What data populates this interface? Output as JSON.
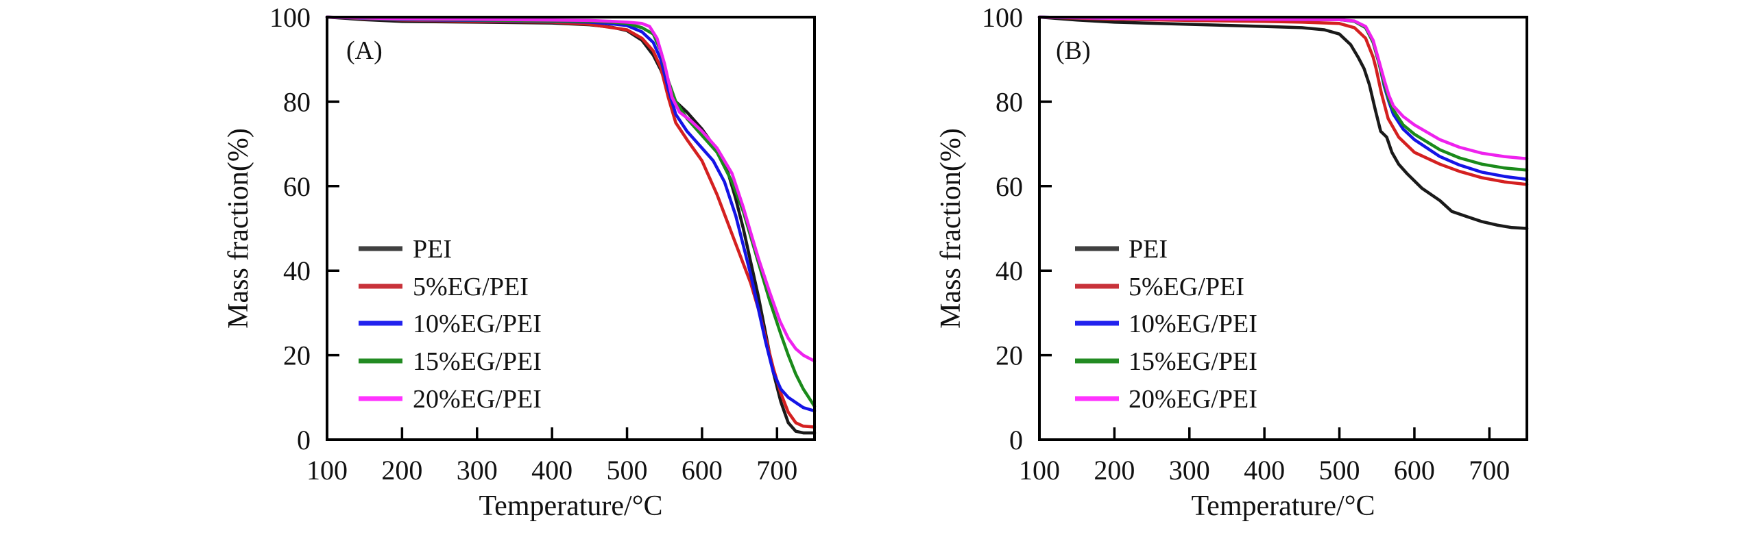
{
  "figure": {
    "panels": [
      "(A)",
      "(B)"
    ]
  },
  "chart_data": [
    {
      "type": "line",
      "panel_label": "(A)",
      "title": "",
      "xlabel": "Temperature/°C",
      "ylabel": "Mass fraction(%)",
      "xlim": [
        100,
        750
      ],
      "ylim": [
        0,
        100
      ],
      "xticks": [
        100,
        200,
        300,
        400,
        500,
        600,
        700
      ],
      "yticks": [
        0,
        20,
        40,
        60,
        80,
        100
      ],
      "grid": false,
      "legend_position": "lower-left",
      "series": [
        {
          "name": "PEI",
          "color": "#1a1a1a",
          "legend_color": "#404040",
          "points": [
            [
              100,
              100
            ],
            [
              150,
              99.4
            ],
            [
              200,
              99
            ],
            [
              300,
              98.8
            ],
            [
              400,
              98.6
            ],
            [
              450,
              98.2
            ],
            [
              480,
              97.6
            ],
            [
              500,
              96.8
            ],
            [
              520,
              94.5
            ],
            [
              535,
              91
            ],
            [
              545,
              87.5
            ],
            [
              555,
              83
            ],
            [
              565,
              80
            ],
            [
              580,
              77.5
            ],
            [
              600,
              73.5
            ],
            [
              620,
              68.5
            ],
            [
              635,
              63
            ],
            [
              645,
              57
            ],
            [
              655,
              50
            ],
            [
              665,
              42
            ],
            [
              675,
              34
            ],
            [
              685,
              25
            ],
            [
              695,
              16
            ],
            [
              705,
              9
            ],
            [
              715,
              4
            ],
            [
              725,
              2
            ],
            [
              735,
              1.6
            ],
            [
              750,
              1.6
            ]
          ]
        },
        {
          "name": "5%EG/PEI",
          "color": "#d42020",
          "legend_color": "#c8323a",
          "points": [
            [
              100,
              100
            ],
            [
              200,
              99.3
            ],
            [
              300,
              99
            ],
            [
              400,
              98.8
            ],
            [
              450,
              98.3
            ],
            [
              480,
              97.5
            ],
            [
              500,
              97
            ],
            [
              520,
              95
            ],
            [
              535,
              92
            ],
            [
              545,
              88
            ],
            [
              555,
              81
            ],
            [
              565,
              75
            ],
            [
              580,
              71
            ],
            [
              600,
              66
            ],
            [
              620,
              58
            ],
            [
              635,
              51
            ],
            [
              650,
              44
            ],
            [
              665,
              37
            ],
            [
              675,
              31
            ],
            [
              685,
              24
            ],
            [
              695,
              17
            ],
            [
              705,
              11
            ],
            [
              715,
              6.5
            ],
            [
              725,
              4
            ],
            [
              735,
              3.2
            ],
            [
              750,
              3
            ]
          ]
        },
        {
          "name": "10%EG/PEI",
          "color": "#1414e6",
          "legend_color": "#2222ee",
          "points": [
            [
              100,
              100
            ],
            [
              200,
              99.4
            ],
            [
              300,
              99.2
            ],
            [
              400,
              99
            ],
            [
              450,
              98.8
            ],
            [
              480,
              98.4
            ],
            [
              500,
              98
            ],
            [
              520,
              96.5
            ],
            [
              535,
              94
            ],
            [
              545,
              90
            ],
            [
              555,
              83
            ],
            [
              565,
              77
            ],
            [
              580,
              73
            ],
            [
              600,
              69
            ],
            [
              615,
              66
            ],
            [
              630,
              61
            ],
            [
              645,
              53
            ],
            [
              655,
              46
            ],
            [
              665,
              39
            ],
            [
              675,
              31
            ],
            [
              685,
              23
            ],
            [
              695,
              16
            ],
            [
              705,
              12
            ],
            [
              715,
              10
            ],
            [
              725,
              8.8
            ],
            [
              735,
              7.6
            ],
            [
              750,
              6.8
            ]
          ]
        },
        {
          "name": "15%EG/PEI",
          "color": "#1a8a1a",
          "legend_color": "#228b22",
          "points": [
            [
              100,
              100
            ],
            [
              200,
              99.5
            ],
            [
              300,
              99.3
            ],
            [
              400,
              99.1
            ],
            [
              450,
              99
            ],
            [
              480,
              98.8
            ],
            [
              500,
              98.5
            ],
            [
              520,
              97.5
            ],
            [
              535,
              96
            ],
            [
              545,
              92
            ],
            [
              555,
              85
            ],
            [
              565,
              80
            ],
            [
              580,
              76
            ],
            [
              600,
              72
            ],
            [
              620,
              68
            ],
            [
              640,
              61
            ],
            [
              655,
              54
            ],
            [
              665,
              48
            ],
            [
              675,
              42
            ],
            [
              690,
              33
            ],
            [
              705,
              25
            ],
            [
              715,
              20
            ],
            [
              725,
              15.5
            ],
            [
              735,
              12
            ],
            [
              750,
              7.9
            ]
          ]
        },
        {
          "name": "20%EG/PEI",
          "color": "#ee22ee",
          "legend_color": "#ff33ff",
          "points": [
            [
              100,
              100
            ],
            [
              200,
              99.6
            ],
            [
              300,
              99.5
            ],
            [
              400,
              99.3
            ],
            [
              450,
              99.2
            ],
            [
              480,
              99
            ],
            [
              500,
              98.8
            ],
            [
              520,
              98.5
            ],
            [
              530,
              97.8
            ],
            [
              540,
              95
            ],
            [
              550,
              89
            ],
            [
              560,
              81
            ],
            [
              570,
              77.5
            ],
            [
              585,
              75.5
            ],
            [
              600,
              73
            ],
            [
              620,
              69
            ],
            [
              640,
              63
            ],
            [
              655,
              55
            ],
            [
              665,
              49
            ],
            [
              675,
              43
            ],
            [
              690,
              35
            ],
            [
              704,
              28
            ],
            [
              715,
              24
            ],
            [
              725,
              21.5
            ],
            [
              735,
              20
            ],
            [
              750,
              18.6
            ]
          ]
        }
      ]
    },
    {
      "type": "line",
      "panel_label": "(B)",
      "title": "",
      "xlabel": "Temperature/°C",
      "ylabel": "Mass fraction(%)",
      "xlim": [
        100,
        750
      ],
      "ylim": [
        0,
        100
      ],
      "xticks": [
        100,
        200,
        300,
        400,
        500,
        600,
        700
      ],
      "yticks": [
        0,
        20,
        40,
        60,
        80,
        100
      ],
      "grid": false,
      "legend_position": "lower-left",
      "series": [
        {
          "name": "PEI",
          "color": "#1a1a1a",
          "legend_color": "#404040",
          "points": [
            [
              100,
              100
            ],
            [
              150,
              99.3
            ],
            [
              200,
              98.8
            ],
            [
              300,
              98.3
            ],
            [
              400,
              97.8
            ],
            [
              450,
              97.5
            ],
            [
              480,
              97
            ],
            [
              500,
              96
            ],
            [
              515,
              93.5
            ],
            [
              525,
              90.5
            ],
            [
              533,
              87.8
            ],
            [
              540,
              84
            ],
            [
              548,
              78
            ],
            [
              555,
              73
            ],
            [
              563,
              71.6
            ],
            [
              570,
              68
            ],
            [
              579,
              65.2
            ],
            [
              590,
              63
            ],
            [
              610,
              59.5
            ],
            [
              634,
              56.6
            ],
            [
              650,
              54
            ],
            [
              670,
              52.8
            ],
            [
              690,
              51.6
            ],
            [
              710,
              50.8
            ],
            [
              730,
              50.2
            ],
            [
              750,
              50
            ]
          ]
        },
        {
          "name": "5%EG/PEI",
          "color": "#d42020",
          "legend_color": "#c8323a",
          "points": [
            [
              100,
              100
            ],
            [
              200,
              99.5
            ],
            [
              300,
              99.2
            ],
            [
              400,
              99
            ],
            [
              450,
              98.8
            ],
            [
              500,
              98.5
            ],
            [
              520,
              97.5
            ],
            [
              535,
              95
            ],
            [
              545,
              90.5
            ],
            [
              549,
              87.8
            ],
            [
              556,
              82
            ],
            [
              565,
              76
            ],
            [
              579,
              71.6
            ],
            [
              600,
              68
            ],
            [
              634,
              65.2
            ],
            [
              660,
              63.5
            ],
            [
              690,
              62
            ],
            [
              720,
              61
            ],
            [
              750,
              60.4
            ]
          ]
        },
        {
          "name": "10%EG/PEI",
          "color": "#1414e6",
          "legend_color": "#2222ee",
          "points": [
            [
              100,
              100
            ],
            [
              200,
              99.7
            ],
            [
              300,
              99.6
            ],
            [
              400,
              99.5
            ],
            [
              500,
              99.4
            ],
            [
              520,
              99
            ],
            [
              535,
              97.5
            ],
            [
              545,
              94
            ],
            [
              553,
              89
            ],
            [
              560,
              83.5
            ],
            [
              566,
              80
            ],
            [
              572,
              77
            ],
            [
              585,
              73.5
            ],
            [
              600,
              71
            ],
            [
              634,
              67
            ],
            [
              660,
              65
            ],
            [
              690,
              63.3
            ],
            [
              720,
              62.3
            ],
            [
              750,
              61.6
            ]
          ]
        },
        {
          "name": "15%EG/PEI",
          "color": "#1a8a1a",
          "legend_color": "#228b22",
          "points": [
            [
              100,
              100
            ],
            [
              200,
              99.7
            ],
            [
              300,
              99.6
            ],
            [
              400,
              99.5
            ],
            [
              500,
              99.4
            ],
            [
              520,
              99
            ],
            [
              535,
              97.5
            ],
            [
              545,
              94
            ],
            [
              553,
              89
            ],
            [
              560,
              84
            ],
            [
              566,
              80.5
            ],
            [
              572,
              78
            ],
            [
              585,
              74.5
            ],
            [
              600,
              72.3
            ],
            [
              634,
              68.6
            ],
            [
              660,
              66.7
            ],
            [
              690,
              65.2
            ],
            [
              720,
              64.3
            ],
            [
              750,
              63.8
            ]
          ]
        },
        {
          "name": "20%EG/PEI",
          "color": "#ee22ee",
          "legend_color": "#ff33ff",
          "points": [
            [
              100,
              100
            ],
            [
              200,
              99.7
            ],
            [
              300,
              99.6
            ],
            [
              400,
              99.5
            ],
            [
              500,
              99.4
            ],
            [
              520,
              99.1
            ],
            [
              535,
              97.8
            ],
            [
              545,
              94.5
            ],
            [
              553,
              89.5
            ],
            [
              560,
              85
            ],
            [
              566,
              81.5
            ],
            [
              572,
              79
            ],
            [
              585,
              76.5
            ],
            [
              600,
              74.5
            ],
            [
              634,
              71
            ],
            [
              660,
              69.2
            ],
            [
              690,
              67.8
            ],
            [
              720,
              67
            ],
            [
              750,
              66.5
            ]
          ]
        }
      ]
    }
  ]
}
